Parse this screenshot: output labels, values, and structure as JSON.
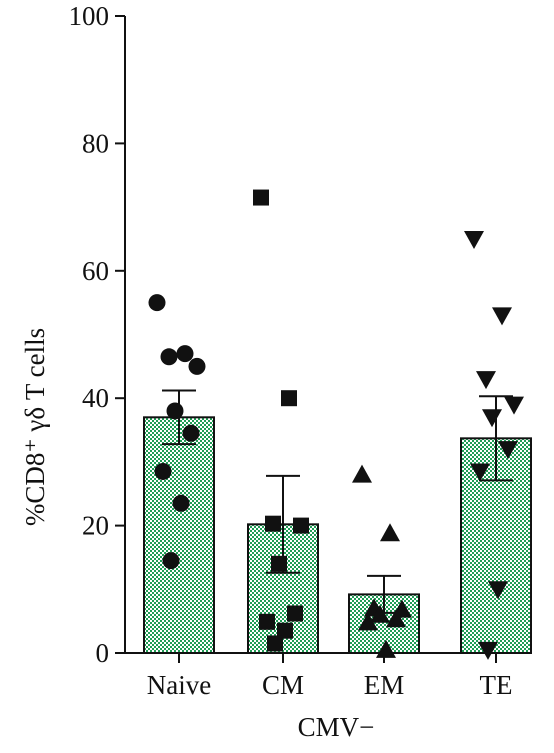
{
  "chart_data": {
    "type": "bar",
    "title": "",
    "xlabel": "CMV−",
    "ylabel": "%CD8⁺ γδ T cells",
    "ylim": [
      0,
      100
    ],
    "yticks": [
      0,
      20,
      40,
      60,
      80,
      100
    ],
    "categories": [
      "Naive",
      "CM",
      "EM",
      "TE"
    ],
    "values": [
      37,
      20.2,
      9.2,
      33.7
    ],
    "errors": [
      4.2,
      7.6,
      2.9,
      6.6
    ],
    "markers": [
      "circle",
      "square",
      "triangle-up",
      "triangle-down"
    ],
    "points": [
      [
        55,
        47,
        46.5,
        45,
        38,
        34.5,
        28.5,
        23.5,
        14.5
      ],
      [
        71.5,
        40,
        20.3,
        20,
        14,
        6.2,
        4.9,
        3.5,
        1.5
      ],
      [
        28,
        18.8,
        7,
        6.8,
        6,
        5.3,
        4.8,
        0.5
      ],
      [
        65,
        53,
        43,
        39,
        37,
        32,
        28.5,
        10,
        0.5
      ]
    ],
    "bar_color": "#1f9d55",
    "grid": false,
    "legend": "none"
  }
}
